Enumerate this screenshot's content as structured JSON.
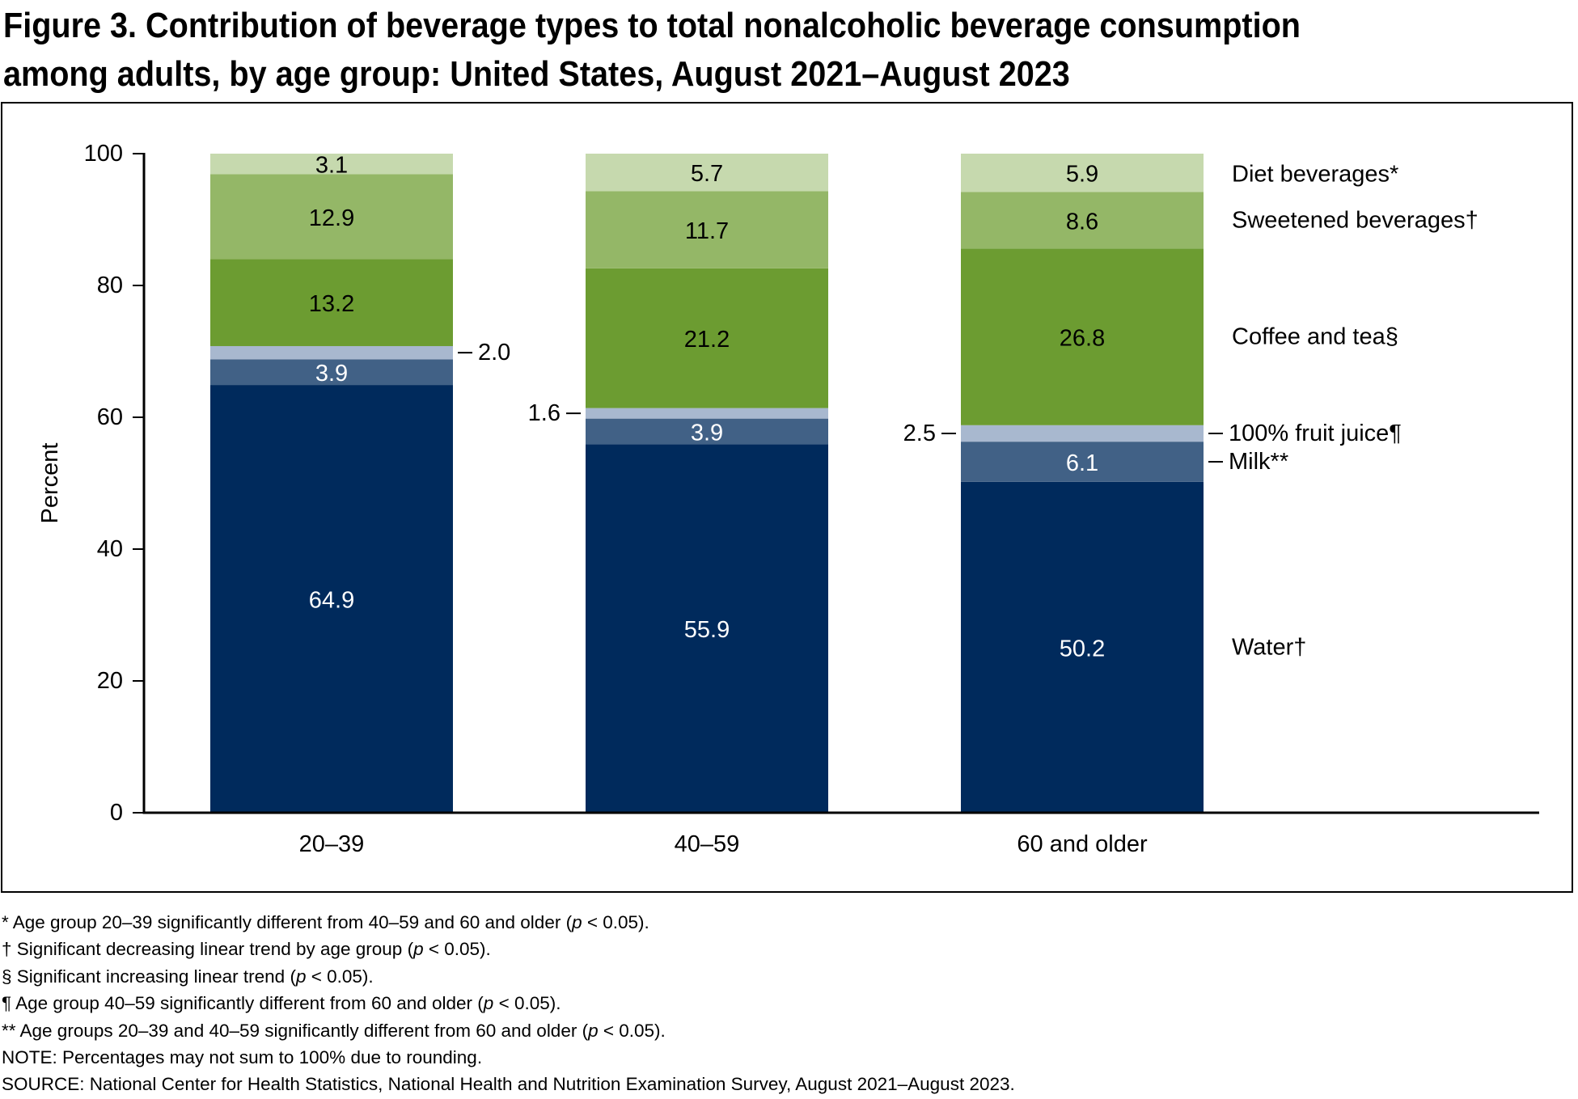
{
  "title": "Figure 3. Contribution of beverage types to total nonalcoholic beverage consumption among adults, by age group: United States, August 2021–August 2023",
  "chart_data": {
    "type": "bar",
    "stacked": true,
    "ylabel": "Percent",
    "xlabel": "",
    "ylim": [
      0,
      100
    ],
    "yticks": [
      "0",
      "20",
      "40",
      "60",
      "80",
      "100"
    ],
    "categories": [
      "20–39",
      "40–59",
      "60 and older"
    ],
    "series": [
      {
        "name": "Water†",
        "color": "#002a5c",
        "label_color": "#ffffff",
        "values": [
          64.9,
          55.9,
          50.2
        ],
        "labels": [
          "64.9",
          "55.9",
          "50.2"
        ]
      },
      {
        "name": "Milk**",
        "color": "#416186",
        "label_color": "#ffffff",
        "values": [
          3.9,
          3.9,
          6.1
        ],
        "labels": [
          "3.9",
          "3.9",
          "6.1"
        ]
      },
      {
        "name": "100% fruit juice¶",
        "color": "#a8b8cf",
        "label_color": "#000000",
        "values": [
          2.0,
          1.6,
          2.5
        ],
        "labels": [
          "2.0",
          "1.6",
          "2.5"
        ],
        "label_side": [
          "right",
          "left",
          "left"
        ]
      },
      {
        "name": "Coffee and tea§",
        "color": "#6c9c31",
        "label_color": "#000000",
        "values": [
          13.2,
          21.2,
          26.8
        ],
        "labels": [
          "13.2",
          "21.2",
          "26.8"
        ]
      },
      {
        "name": "Sweetened beverages†",
        "color": "#94b767",
        "label_color": "#000000",
        "values": [
          12.9,
          11.7,
          8.6
        ],
        "labels": [
          "12.9",
          "11.7",
          "8.6"
        ]
      },
      {
        "name": "Diet beverages*",
        "color": "#c6d9ae",
        "label_color": "#000000",
        "values": [
          3.1,
          5.7,
          5.9
        ],
        "labels": [
          "3.1",
          "5.7",
          "5.9"
        ]
      }
    ],
    "legend_placement": "right of last bar, aligned with segments"
  },
  "footnotes": [
    {
      "pre": "* Age group 20–39 significantly different from 40–59 and 60 and older (",
      "p": "p",
      "post": " < 0.05)."
    },
    {
      "pre": "† Significant decreasing linear trend by age group (",
      "p": "p",
      "post": " < 0.05)."
    },
    {
      "pre": "§ Significant increasing linear trend (",
      "p": "p",
      "post": " < 0.05)."
    },
    {
      "pre": "¶ Age group 40–59 significantly different from 60 and older (",
      "p": "p",
      "post": " < 0.05)."
    },
    {
      "pre": "** Age groups 20–39 and 40–59 significantly different from 60 and older (",
      "p": "p",
      "post": " < 0.05)."
    }
  ],
  "note": "NOTE: Percentages may not sum to 100% due to rounding.",
  "source": "SOURCE: National Center for Health Statistics, National Health and Nutrition Examination Survey, August 2021–August 2023."
}
